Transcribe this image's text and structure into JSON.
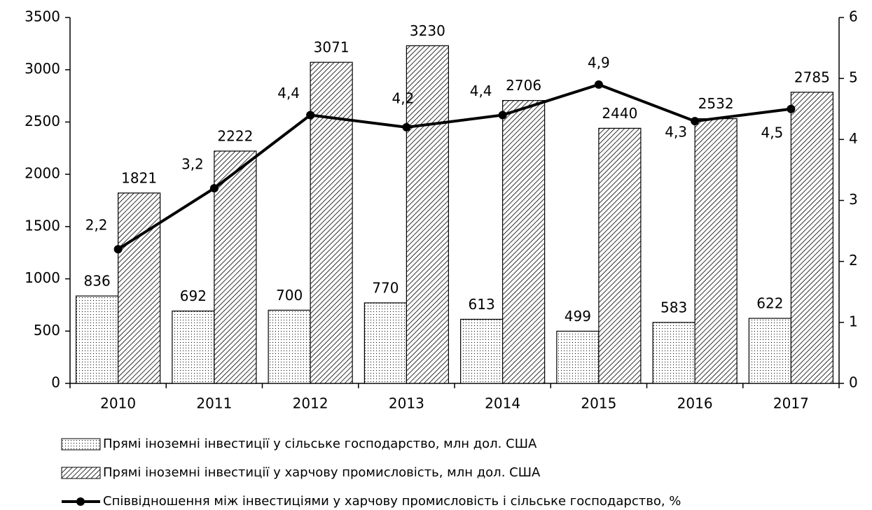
{
  "chart_data": {
    "type": "bar",
    "categories": [
      "2010",
      "2011",
      "2012",
      "2013",
      "2014",
      "2015",
      "2016",
      "2017"
    ],
    "series": [
      {
        "name": "Прямі іноземні інвестиції у сільське господарство, млн дол. США",
        "type": "bar",
        "color": "#000000",
        "pattern": "dots",
        "values": [
          836,
          692,
          700,
          770,
          613,
          499,
          583,
          622
        ]
      },
      {
        "name": "Прямі іноземні інвестиції у харчову промисловість, млн дол. США",
        "type": "bar",
        "color": "#000000",
        "pattern": "hatch",
        "values": [
          1821,
          2222,
          3071,
          3230,
          2706,
          2440,
          2532,
          2785
        ]
      },
      {
        "name": "Співвідношення між інвестиціями у харчову промисловість і сільське господарство, %",
        "type": "line",
        "color": "#000000",
        "axis": "y2",
        "values": [
          2.2,
          3.2,
          4.4,
          4.2,
          4.4,
          4.9,
          4.3,
          4.5
        ],
        "value_labels": [
          "2,2",
          "3,2",
          "4,4",
          "4,2",
          "4,4",
          "4,9",
          "4,3",
          "4,5"
        ]
      }
    ],
    "ylim": [
      0,
      3500
    ],
    "yticks": [
      0,
      500,
      1000,
      1500,
      2000,
      2500,
      3000,
      3500
    ],
    "y2lim": [
      0,
      6
    ],
    "y2ticks": [
      0,
      1,
      2,
      3,
      4,
      5,
      6
    ],
    "grid": false,
    "legend": "bottom"
  }
}
